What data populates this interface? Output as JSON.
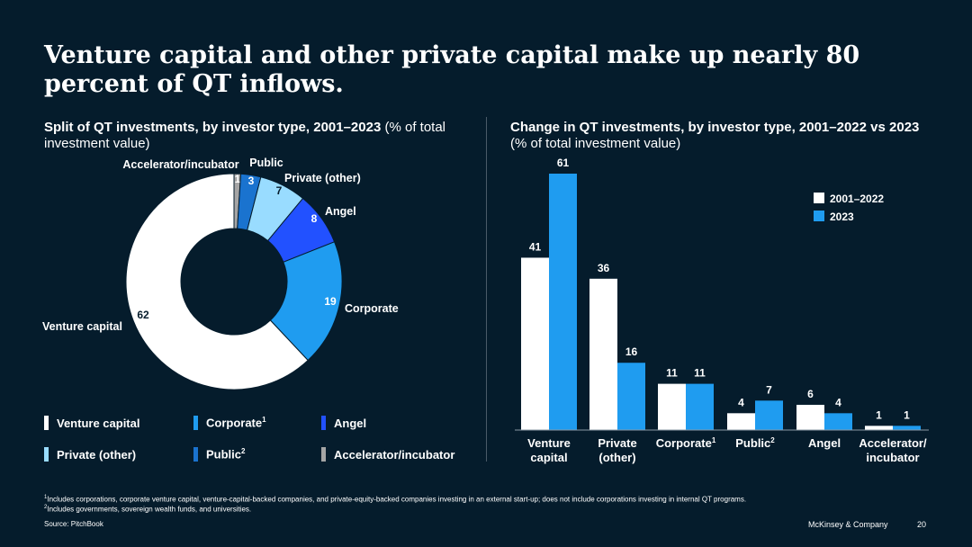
{
  "title": "Venture capital and other private capital make up nearly 80 percent of QT inflows.",
  "left_chart": {
    "subtitle_bold": "Split of QT investments, by investor type, 2001–2023",
    "subtitle_rest": " (% of total investment value)"
  },
  "right_chart": {
    "subtitle_bold": "Change in QT investments, by investor type, 2001–2022 vs 2023",
    "subtitle_rest": " (% of total investment value)"
  },
  "legend_left": [
    {
      "label": "Venture capital",
      "sup": "",
      "color": "#ffffff"
    },
    {
      "label": "Corporate",
      "sup": "1",
      "color": "#1f9cf0"
    },
    {
      "label": "Angel",
      "sup": "",
      "color": "#2251ff"
    },
    {
      "label": "Private (other)",
      "sup": "",
      "color": "#99dcff"
    },
    {
      "label": "Public",
      "sup": "2",
      "color": "#1a73cf"
    },
    {
      "label": "Accelerator/incubator",
      "sup": "",
      "color": "#a5a5a5"
    }
  ],
  "footnotes": {
    "note1_marker": "1",
    "note1": "Includes corporations, corporate venture capital, venture-capital-backed companies, and private-equity-backed companies investing in an external start-up; does not include corporations investing in internal QT programs.",
    "note2_marker": "2",
    "note2": "Includes governments, sovereign wealth funds, and universities.",
    "source": "Source: PitchBook"
  },
  "footer": {
    "brand": "McKinsey & Company",
    "page": "20"
  },
  "chart_data": [
    {
      "type": "pie",
      "variant": "donut",
      "title": "Split of QT investments, by investor type, 2001–2023 (% of total investment value)",
      "slices": [
        {
          "name": "Accelerator/incubator",
          "value": 1,
          "color": "#a5a5a5"
        },
        {
          "name": "Public",
          "value": 3,
          "color": "#1a73cf"
        },
        {
          "name": "Private (other)",
          "value": 7,
          "color": "#99dcff"
        },
        {
          "name": "Angel",
          "value": 8,
          "color": "#2251ff"
        },
        {
          "name": "Corporate",
          "value": 19,
          "color": "#1f9cf0"
        },
        {
          "name": "Venture capital",
          "value": 62,
          "color": "#ffffff"
        }
      ]
    },
    {
      "type": "bar",
      "title": "Change in QT investments, by investor type, 2001–2022 vs 2023 (% of total investment value)",
      "categories": [
        {
          "line1": "Venture",
          "line2": "capital",
          "sup": ""
        },
        {
          "line1": "Private",
          "line2": "(other)",
          "sup": ""
        },
        {
          "line1": "Corporate",
          "line2": "",
          "sup": "1"
        },
        {
          "line1": "Public",
          "line2": "",
          "sup": "2"
        },
        {
          "line1": "Angel",
          "line2": "",
          "sup": ""
        },
        {
          "line1": "Accelerator/",
          "line2": "incubator",
          "sup": ""
        }
      ],
      "series": [
        {
          "name": "2001–2022",
          "color": "#ffffff",
          "values": [
            41,
            36,
            11,
            4,
            6,
            1
          ]
        },
        {
          "name": "2023",
          "color": "#1f9cf0",
          "values": [
            61,
            16,
            11,
            7,
            4,
            1
          ]
        }
      ],
      "ylim": [
        0,
        61
      ]
    }
  ]
}
